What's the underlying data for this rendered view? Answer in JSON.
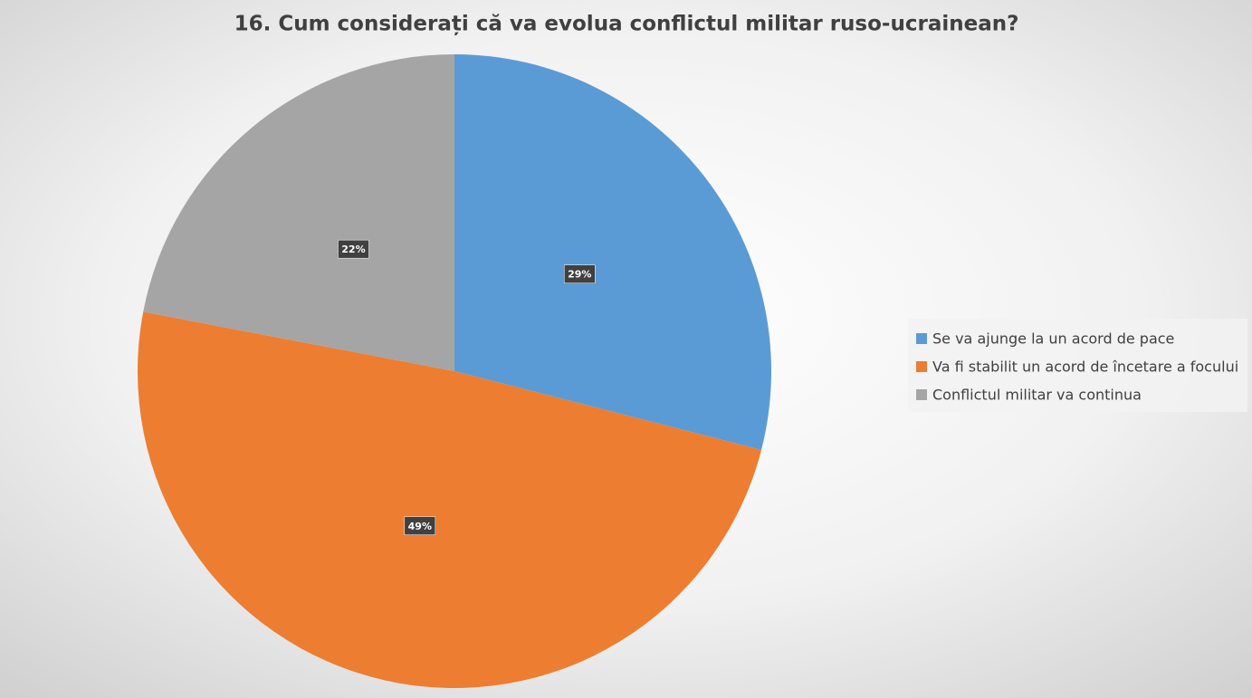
{
  "chart_data": {
    "type": "pie",
    "title": "16. Cum considerați că va evolua conflictul militar ruso-ucrainean?",
    "categories": [
      "Se va ajunge la un acord de pace",
      "Va fi stabilit un acord de încetare a focului",
      "Conflictul militar va continua"
    ],
    "values": [
      29,
      49,
      22
    ],
    "value_labels": [
      "29%",
      "49%",
      "22%"
    ],
    "colors": [
      "#5b9bd5",
      "#ed7d31",
      "#a5a5a5"
    ],
    "legend": "right"
  }
}
